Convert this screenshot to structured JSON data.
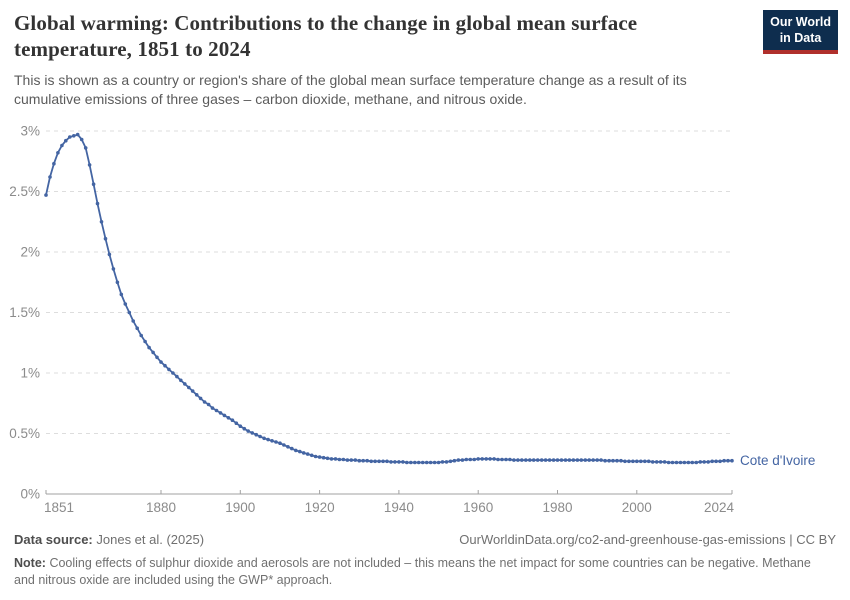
{
  "header": {
    "title": "Global warming: Contributions to the change in global mean surface temperature, 1851 to 2024",
    "subtitle": "This is shown as a country or region's share of the global mean surface temperature change as a result of its cumulative emissions of three gases – carbon dioxide, methane, and nitrous oxide.",
    "logo": {
      "line1": "Our World",
      "line2": "in Data"
    }
  },
  "footer": {
    "data_source_label": "Data source:",
    "data_source": "Jones et al. (2025)",
    "attribution": "OurWorldinData.org/co2-and-greenhouse-gas-emissions | CC BY",
    "note_label": "Note:",
    "note": "Cooling effects of sulphur dioxide and aerosols are not included – this means the net impact for some countries can be negative. Methane and nitrous oxide are included using the GWP* approach."
  },
  "colors": {
    "line": "#4465a3",
    "series_label": "#4465a3",
    "grid": "#dddddd",
    "axis": "#a1a1a1",
    "tick_label": "#8b8b8b",
    "logo_navy": "#0e2d4e",
    "logo_red": "#b0302c"
  },
  "chart_data": {
    "type": "line",
    "title": "Global warming: Contributions to the change in global mean surface temperature, 1851 to 2024",
    "series_name": "Cote d'Ivoire",
    "unit": "%",
    "xlabel": "",
    "ylabel": "",
    "x_start_year": 1851,
    "x_end_year": 2024,
    "x_ticks": [
      1851,
      1880,
      1900,
      1920,
      1940,
      1960,
      1980,
      2000,
      2024
    ],
    "y_ticks": [
      "0%",
      "0.5%",
      "1%",
      "1.5%",
      "2%",
      "2.5%",
      "3%"
    ],
    "y_tick_values": [
      0,
      0.5,
      1,
      1.5,
      2,
      2.5,
      3
    ],
    "ylim": [
      0,
      3
    ],
    "grid": true,
    "legend_position": "end-of-line",
    "values": [
      2.47,
      2.62,
      2.73,
      2.82,
      2.88,
      2.92,
      2.95,
      2.96,
      2.97,
      2.93,
      2.86,
      2.72,
      2.56,
      2.4,
      2.25,
      2.11,
      1.98,
      1.86,
      1.75,
      1.65,
      1.57,
      1.5,
      1.43,
      1.37,
      1.31,
      1.26,
      1.21,
      1.17,
      1.13,
      1.09,
      1.06,
      1.03,
      1.0,
      0.97,
      0.94,
      0.91,
      0.88,
      0.85,
      0.82,
      0.79,
      0.76,
      0.74,
      0.71,
      0.69,
      0.67,
      0.65,
      0.63,
      0.61,
      0.585,
      0.56,
      0.54,
      0.52,
      0.505,
      0.49,
      0.475,
      0.46,
      0.45,
      0.44,
      0.43,
      0.42,
      0.405,
      0.39,
      0.375,
      0.36,
      0.35,
      0.34,
      0.33,
      0.32,
      0.31,
      0.305,
      0.3,
      0.295,
      0.29,
      0.29,
      0.285,
      0.285,
      0.28,
      0.28,
      0.28,
      0.275,
      0.275,
      0.275,
      0.27,
      0.27,
      0.27,
      0.27,
      0.27,
      0.265,
      0.265,
      0.265,
      0.265,
      0.26,
      0.26,
      0.26,
      0.26,
      0.26,
      0.26,
      0.26,
      0.26,
      0.26,
      0.265,
      0.265,
      0.27,
      0.275,
      0.28,
      0.28,
      0.285,
      0.285,
      0.285,
      0.29,
      0.29,
      0.29,
      0.29,
      0.29,
      0.285,
      0.285,
      0.285,
      0.285,
      0.28,
      0.28,
      0.28,
      0.28,
      0.28,
      0.28,
      0.28,
      0.28,
      0.28,
      0.28,
      0.28,
      0.28,
      0.28,
      0.28,
      0.28,
      0.28,
      0.28,
      0.28,
      0.28,
      0.28,
      0.28,
      0.28,
      0.28,
      0.275,
      0.275,
      0.275,
      0.275,
      0.275,
      0.27,
      0.27,
      0.27,
      0.27,
      0.27,
      0.27,
      0.27,
      0.265,
      0.265,
      0.265,
      0.265,
      0.26,
      0.26,
      0.26,
      0.26,
      0.26,
      0.26,
      0.26,
      0.26,
      0.265,
      0.265,
      0.265,
      0.27,
      0.27,
      0.27,
      0.275,
      0.275,
      0.275
    ]
  }
}
